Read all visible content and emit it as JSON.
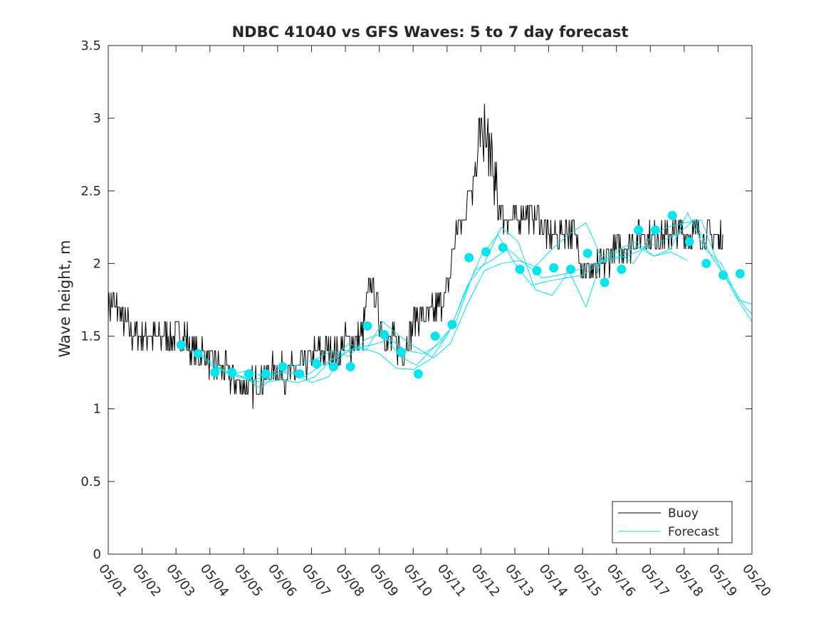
{
  "chart_data": {
    "type": "line",
    "title": "NDBC 41040 vs GFS Waves: 5 to 7 day forecast",
    "xlabel": "",
    "ylabel": "Wave height, m",
    "xlim": [
      "05/01",
      "05/20"
    ],
    "ylim": [
      0,
      3.5
    ],
    "x_ticks": [
      "05/01",
      "05/02",
      "05/03",
      "05/04",
      "05/05",
      "05/06",
      "05/07",
      "05/08",
      "05/09",
      "05/10",
      "05/11",
      "05/12",
      "05/13",
      "05/14",
      "05/15",
      "05/16",
      "05/17",
      "05/18",
      "05/19",
      "05/20"
    ],
    "y_ticks": [
      "0",
      "0.5",
      "1",
      "1.5",
      "2",
      "2.5",
      "3",
      "3.5"
    ],
    "grid": false,
    "legend": {
      "placement": "bottom-right",
      "entries": [
        "Buoy",
        "Forecast"
      ]
    },
    "colors": {
      "buoy": "#000000",
      "forecast": "#00e5ee",
      "axis": "#262626"
    },
    "series": [
      {
        "name": "Buoy",
        "style": "line",
        "x_day": [
          1.0,
          1.25,
          1.5,
          1.75,
          2.0,
          2.25,
          2.5,
          2.75,
          3.0,
          3.25,
          3.5,
          3.75,
          4.0,
          4.25,
          4.5,
          4.75,
          5.0,
          5.25,
          5.5,
          5.75,
          6.0,
          6.25,
          6.5,
          6.75,
          7.0,
          7.25,
          7.5,
          7.75,
          8.0,
          8.25,
          8.5,
          8.75,
          9.0,
          9.25,
          9.5,
          9.75,
          10.0,
          10.25,
          10.5,
          10.75,
          11.0,
          11.25,
          11.5,
          11.75,
          12.0,
          12.25,
          12.5,
          12.75,
          13.0,
          13.25,
          13.5,
          13.75,
          14.0,
          14.25,
          14.5,
          14.75,
          15.0,
          15.25,
          15.5,
          15.75,
          16.0,
          16.25,
          16.5,
          16.75,
          17.0,
          17.25,
          17.5,
          17.75,
          18.0,
          18.25,
          18.5,
          18.75,
          19.0,
          19.15
        ],
        "y": [
          1.7,
          1.7,
          1.6,
          1.5,
          1.5,
          1.5,
          1.5,
          1.5,
          1.5,
          1.5,
          1.4,
          1.4,
          1.3,
          1.3,
          1.25,
          1.2,
          1.15,
          1.15,
          1.2,
          1.25,
          1.25,
          1.25,
          1.25,
          1.3,
          1.35,
          1.4,
          1.4,
          1.4,
          1.45,
          1.45,
          1.5,
          1.9,
          1.6,
          1.45,
          1.45,
          1.4,
          1.6,
          1.65,
          1.65,
          1.7,
          1.8,
          2.2,
          2.3,
          2.6,
          2.9,
          2.8,
          2.4,
          2.3,
          2.3,
          2.35,
          2.35,
          2.3,
          2.2,
          2.2,
          2.25,
          2.2,
          2.0,
          1.95,
          1.95,
          2.05,
          2.1,
          2.1,
          2.15,
          2.2,
          2.2,
          2.2,
          2.2,
          2.2,
          2.2,
          2.2,
          2.2,
          2.2,
          2.15,
          2.2
        ]
      },
      {
        "name": "Forecast",
        "style": "markers",
        "x_day": [
          3.15,
          3.65,
          4.15,
          4.65,
          5.15,
          5.65,
          6.15,
          6.65,
          7.15,
          7.65,
          8.15,
          8.65,
          9.15,
          9.65,
          10.15,
          10.65,
          11.15,
          11.65,
          12.15,
          12.65,
          13.15,
          13.65,
          14.15,
          14.65,
          15.15,
          15.65,
          16.15,
          16.65,
          17.15,
          17.65,
          18.15,
          18.65,
          19.15,
          19.65
        ],
        "y": [
          1.44,
          1.38,
          1.25,
          1.25,
          1.24,
          1.24,
          1.29,
          1.24,
          1.31,
          1.29,
          1.29,
          1.57,
          1.51,
          1.39,
          1.24,
          1.5,
          1.58,
          2.04,
          2.08,
          2.11,
          1.96,
          1.95,
          1.97,
          1.96,
          2.07,
          1.87,
          1.96,
          2.23,
          2.23,
          2.33,
          2.15,
          2.0,
          1.92,
          1.93
        ]
      },
      {
        "name": "",
        "style": "line",
        "x_day": [
          3.3,
          3.8,
          4.3,
          4.8,
          5.3,
          5.8,
          6.3,
          6.8,
          7.3,
          7.8,
          8.3,
          8.8,
          9.3,
          9.8,
          10.3,
          10.8,
          11.3,
          11.8,
          12.3,
          12.8,
          13.3,
          13.8,
          14.3,
          14.8,
          15.3,
          15.8,
          16.3,
          16.8,
          17.3,
          17.8,
          18.3,
          18.8,
          19.3,
          19.8,
          20.0
        ],
        "y": [
          1.42,
          1.36,
          1.28,
          1.22,
          1.2,
          1.23,
          1.26,
          1.22,
          1.3,
          1.36,
          1.42,
          1.44,
          1.48,
          1.4,
          1.38,
          1.45,
          1.62,
          1.95,
          2.02,
          2.1,
          2.0,
          1.9,
          1.92,
          1.95,
          2.0,
          2.02,
          2.05,
          2.1,
          2.15,
          2.2,
          2.3,
          2.05,
          1.88,
          1.7,
          1.65
        ]
      },
      {
        "name": "",
        "style": "line",
        "x_day": [
          3.6,
          4.1,
          4.6,
          5.1,
          5.6,
          6.1,
          6.6,
          7.1,
          7.6,
          8.1,
          8.6,
          9.1,
          9.6,
          10.1,
          10.6,
          11.1,
          11.6,
          12.1,
          12.6,
          13.1,
          13.6,
          14.1,
          14.6,
          15.1,
          15.6,
          16.1,
          16.6,
          17.1,
          17.6,
          18.1,
          18.6,
          19.1,
          19.6,
          20.0
        ],
        "y": [
          1.38,
          1.3,
          1.24,
          1.26,
          1.22,
          1.28,
          1.3,
          1.34,
          1.4,
          1.36,
          1.48,
          1.52,
          1.36,
          1.3,
          1.42,
          1.55,
          1.85,
          2.0,
          2.25,
          2.15,
          1.82,
          1.78,
          1.95,
          1.7,
          2.05,
          2.1,
          2.15,
          2.05,
          2.1,
          2.35,
          2.1,
          2.0,
          1.75,
          1.72
        ]
      },
      {
        "name": "",
        "style": "line",
        "x_day": [
          4.0,
          4.5,
          5.0,
          5.5,
          6.0,
          6.5,
          7.0,
          7.5,
          8.0,
          8.5,
          9.0,
          9.5,
          10.0,
          10.5,
          11.0,
          11.5,
          12.0,
          12.5,
          13.0,
          13.5,
          14.0,
          14.5,
          15.0,
          15.5,
          16.0,
          16.5,
          17.0,
          17.5,
          18.0,
          18.5,
          19.0,
          19.5,
          20.0
        ],
        "y": [
          1.3,
          1.25,
          1.22,
          1.14,
          1.25,
          1.24,
          1.18,
          1.22,
          1.4,
          1.42,
          1.38,
          1.28,
          1.27,
          1.34,
          1.5,
          1.78,
          2.05,
          2.2,
          2.0,
          1.85,
          1.88,
          1.9,
          1.92,
          2.0,
          2.08,
          2.0,
          2.18,
          2.25,
          2.28,
          2.3,
          2.0,
          1.78,
          1.6
        ]
      },
      {
        "name": "",
        "style": "line",
        "x_day": [
          4.6,
          5.1,
          5.6,
          6.1,
          6.6,
          7.1,
          7.6,
          8.1,
          8.6,
          9.1,
          9.6,
          10.1,
          10.6,
          11.1,
          11.6,
          12.1,
          12.6,
          13.1,
          13.6,
          14.1,
          14.6,
          15.1,
          15.6,
          16.1,
          16.6,
          17.1,
          17.6,
          18.1
        ],
        "y": [
          1.26,
          1.2,
          1.18,
          1.2,
          1.18,
          1.22,
          1.34,
          1.45,
          1.4,
          1.6,
          1.5,
          1.42,
          1.35,
          1.45,
          1.72,
          1.95,
          2.0,
          2.02,
          1.98,
          2.1,
          2.2,
          2.28,
          2.02,
          2.05,
          2.12,
          2.05,
          2.08,
          2.02
        ]
      }
    ]
  }
}
